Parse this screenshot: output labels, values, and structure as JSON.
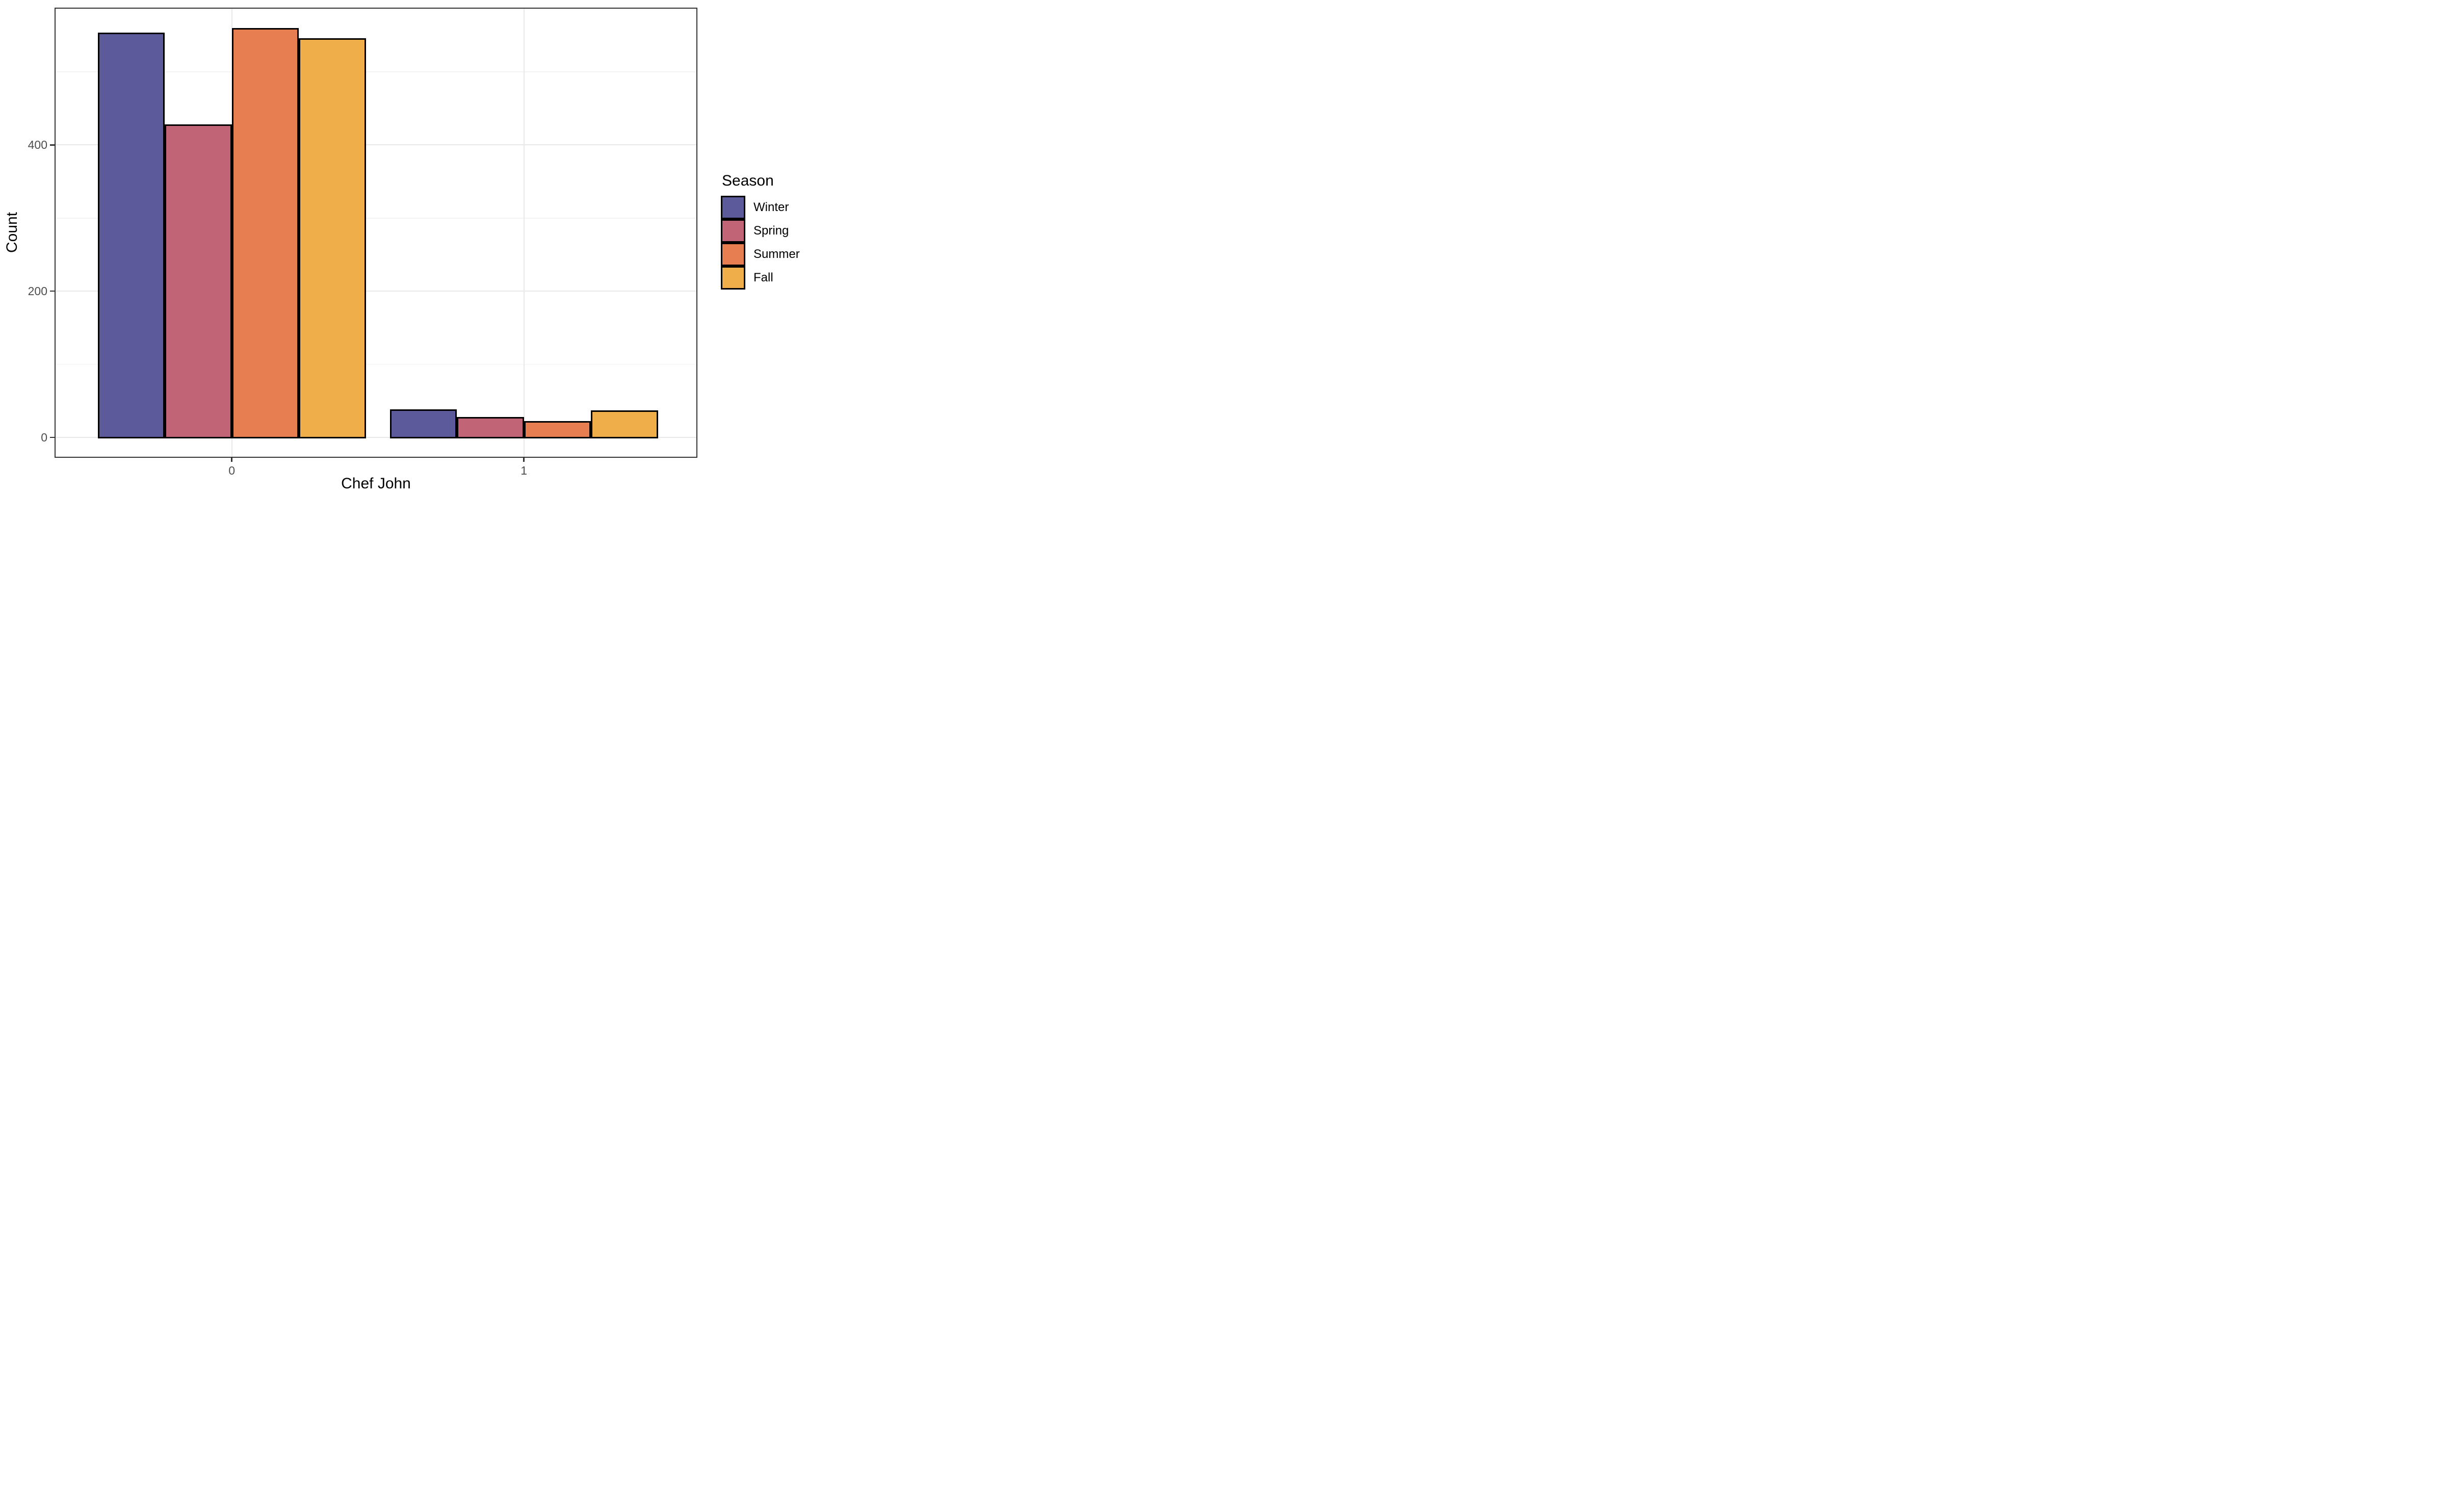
{
  "figure": {
    "background": "#FFFFFF"
  },
  "chart_data": {
    "type": "bar",
    "grouping": "dodged",
    "title": "",
    "xlabel": "Chef John",
    "ylabel": "Count",
    "categories": [
      "0",
      "1"
    ],
    "series": [
      {
        "name": "Winter",
        "color": "#5D5A9C",
        "values": [
          554,
          38
        ]
      },
      {
        "name": "Spring",
        "color": "#C06476",
        "values": [
          428,
          28
        ]
      },
      {
        "name": "Summer",
        "color": "#E77E51",
        "values": [
          560,
          22
        ]
      },
      {
        "name": "Fall",
        "color": "#F0AE4B",
        "values": [
          546,
          37
        ]
      }
    ],
    "y_axis": {
      "ticks": [
        0,
        200,
        400
      ],
      "minor_ticks": [
        100,
        300,
        500
      ],
      "range": [
        -28,
        588
      ]
    },
    "x_axis": {
      "ticks": [
        "0",
        "1"
      ]
    },
    "legend": {
      "title": "Season",
      "position": "right"
    },
    "grid": {
      "major": true,
      "minor": true
    },
    "bar_outline_color": "#000000"
  },
  "style": {
    "tick_label_color": "#4D4D4D",
    "axis_title_color": "#000000",
    "panel_border_color": "#333333",
    "grid_major_color": "#E8E8E8",
    "grid_minor_color": "#F3F3F3"
  }
}
